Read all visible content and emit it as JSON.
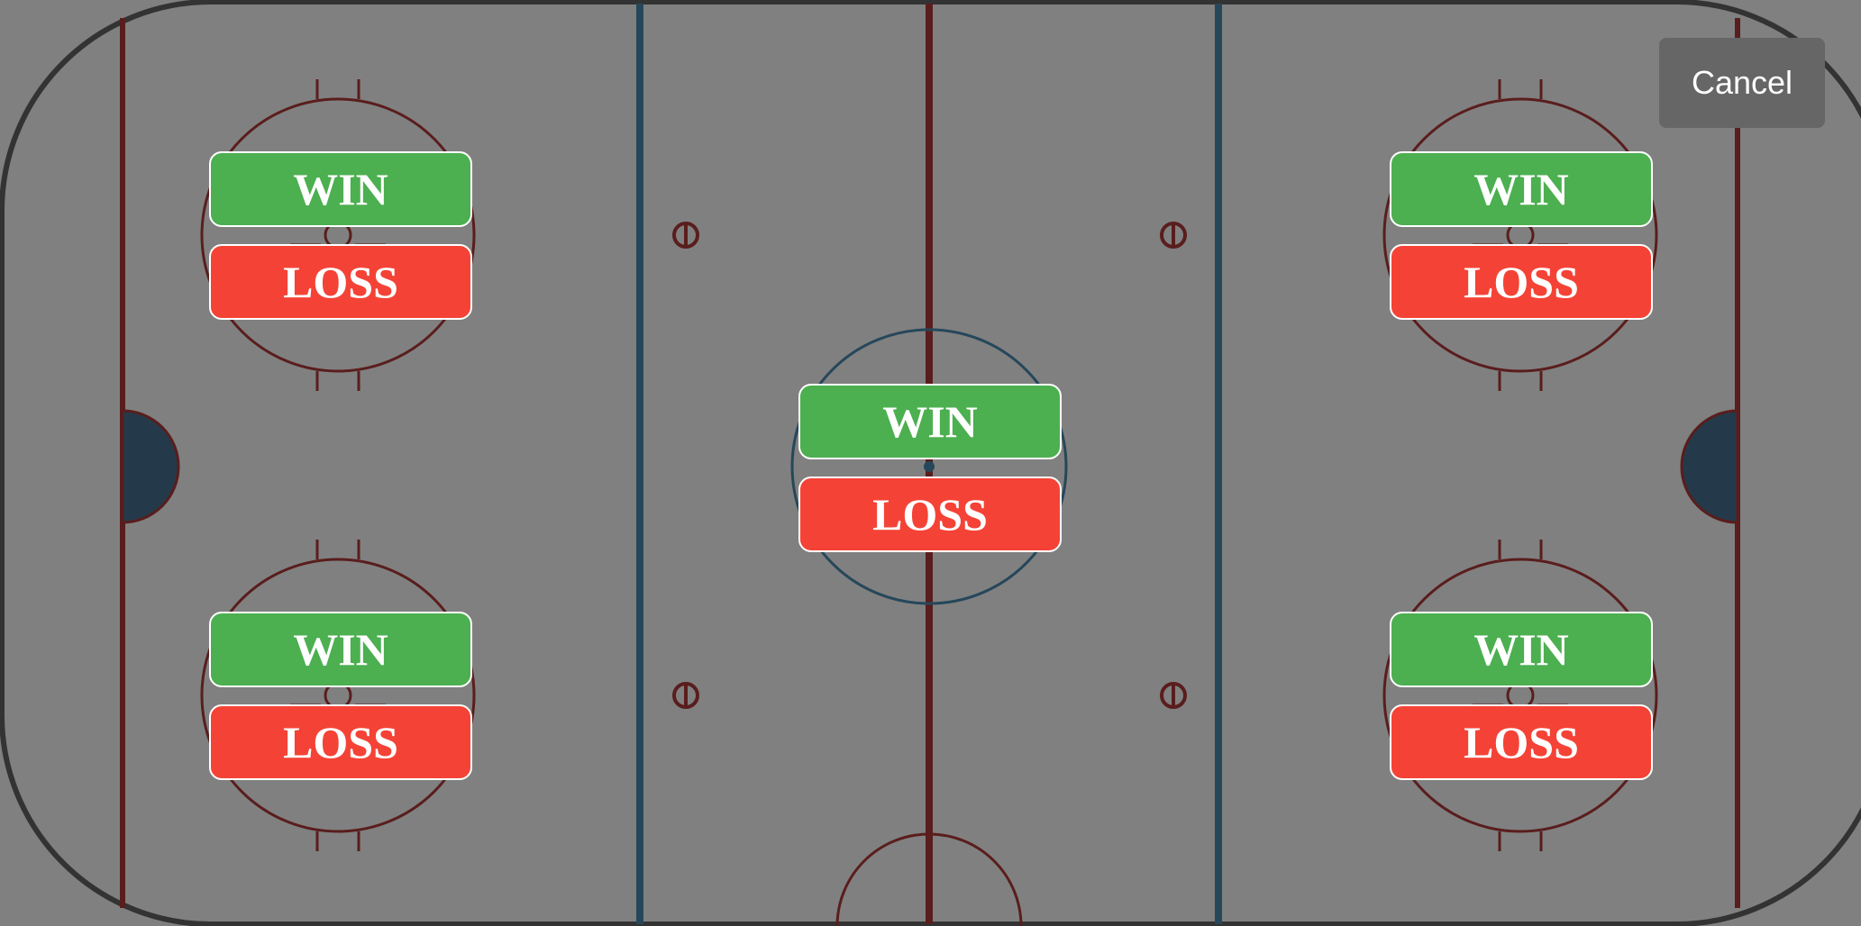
{
  "colors": {
    "overlay_gray": "#808080",
    "boards": "#333333",
    "red_line": "#5a1d1d",
    "blue_line": "#26475a",
    "crease": "#243a4a",
    "win": "#4caf50",
    "loss": "#f44336",
    "cancel": "#666666"
  },
  "dialog": {
    "cancel_label": "Cancel"
  },
  "faceoff_choices": [
    {
      "zone": "top-left",
      "win_label": "WIN",
      "loss_label": "LOSS"
    },
    {
      "zone": "bottom-left",
      "win_label": "WIN",
      "loss_label": "LOSS"
    },
    {
      "zone": "center",
      "win_label": "WIN",
      "loss_label": "LOSS"
    },
    {
      "zone": "top-right",
      "win_label": "WIN",
      "loss_label": "LOSS"
    },
    {
      "zone": "bottom-right",
      "win_label": "WIN",
      "loss_label": "LOSS"
    }
  ]
}
